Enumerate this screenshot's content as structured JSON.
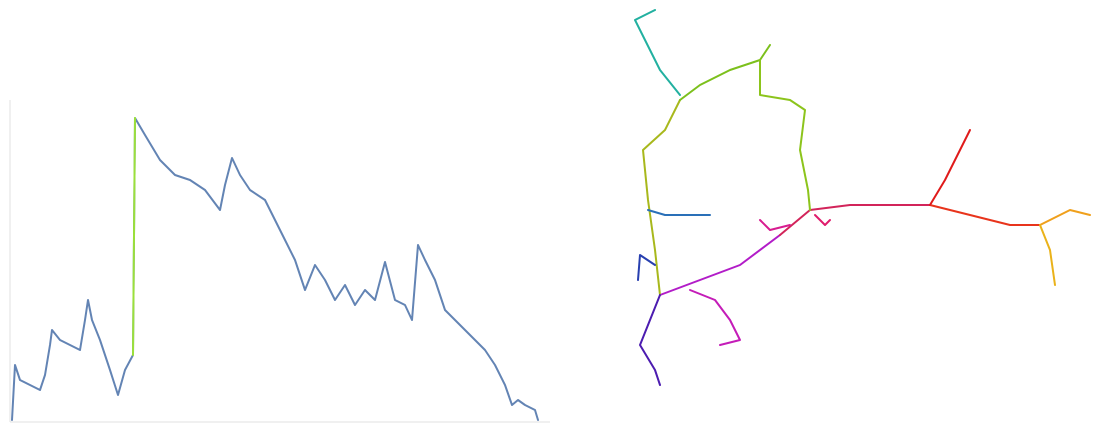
{
  "chart_data": [
    {
      "type": "line",
      "xlim": [
        0,
        540
      ],
      "ylim": [
        0,
        322
      ],
      "axes": true,
      "series": [
        {
          "color": "#6384b4",
          "x": [
            2,
            5,
            10,
            20,
            30,
            35,
            40,
            42,
            50,
            60,
            70,
            75,
            78,
            82,
            90,
            100,
            108,
            115,
            123,
            125,
            135,
            150,
            165,
            180,
            195,
            210,
            215,
            222,
            230,
            240,
            255,
            265,
            275,
            285,
            295,
            305,
            315,
            325,
            335,
            345,
            355,
            365,
            375,
            385,
            395,
            402,
            408,
            415,
            425,
            435,
            445,
            455,
            465,
            475,
            485,
            495,
            502,
            508,
            515,
            525,
            528
          ],
          "values": [
            2,
            57,
            42,
            37,
            32,
            47,
            77,
            92,
            82,
            77,
            72,
            102,
            122,
            102,
            82,
            52,
            27,
            52,
            67,
            304,
            287,
            262,
            247,
            242,
            232,
            212,
            237,
            264,
            247,
            232,
            222,
            202,
            182,
            162,
            132,
            157,
            142,
            122,
            137,
            117,
            132,
            122,
            160,
            122,
            117,
            102,
            177,
            162,
            142,
            112,
            102,
            92,
            82,
            72,
            57,
            37,
            17,
            22,
            17,
            12,
            2
          ]
        },
        {
          "color": "#9be03a",
          "x": [
            123,
            125
          ],
          "values": [
            67,
            304
          ]
        }
      ]
    },
    {
      "type": "line",
      "xlim": [
        0,
        475
      ],
      "ylim": [
        0,
        439
      ],
      "axes": false,
      "series": [
        {
          "color": "#b21cc8",
          "x": [
            40,
            80,
            120,
            160
          ],
          "values": [
            144,
            159,
            174,
            204
          ]
        },
        {
          "color": "#d2245a",
          "x": [
            160,
            190,
            230,
            270,
            310
          ],
          "values": [
            204,
            229,
            234,
            234,
            234
          ]
        },
        {
          "color": "#e8341c",
          "x": [
            310,
            350,
            390,
            420
          ],
          "values": [
            234,
            224,
            214,
            214
          ]
        },
        {
          "color": "#f0a01c",
          "x": [
            420,
            450,
            470
          ],
          "values": [
            214,
            229,
            224
          ]
        },
        {
          "color": "#a8b81c",
          "x": [
            40,
            35,
            28,
            23,
            45,
            60
          ],
          "values": [
            144,
            189,
            239,
            289,
            309,
            339
          ]
        },
        {
          "color": "#7cc01c",
          "x": [
            60,
            80,
            110,
            140,
            150
          ],
          "values": [
            339,
            354,
            369,
            379,
            394
          ]
        },
        {
          "color": "#8cc41c",
          "x": [
            140,
            140,
            170,
            185,
            180,
            188,
            190
          ],
          "values": [
            379,
            344,
            339,
            329,
            289,
            249,
            229
          ]
        },
        {
          "color": "#22b0a0",
          "x": [
            60,
            40,
            25,
            15,
            35
          ],
          "values": [
            344,
            369,
            399,
            419,
            429
          ]
        },
        {
          "color": "#e01a1a",
          "x": [
            310,
            325,
            340,
            350
          ],
          "values": [
            234,
            259,
            289,
            309
          ]
        },
        {
          "color": "#eab21a",
          "x": [
            420,
            430,
            435
          ],
          "values": [
            214,
            189,
            154
          ]
        },
        {
          "color": "#2a70b8",
          "x": [
            28,
            45,
            70,
            90
          ],
          "values": [
            229,
            224,
            224,
            224
          ]
        },
        {
          "color": "#2840b0",
          "x": [
            35,
            20,
            18
          ],
          "values": [
            174,
            184,
            159
          ]
        },
        {
          "color": "#4c1cb0",
          "x": [
            40,
            30,
            20,
            35,
            40
          ],
          "values": [
            144,
            119,
            94,
            69,
            54
          ]
        },
        {
          "color": "#c41cb8",
          "x": [
            70,
            95,
            110,
            120,
            100
          ],
          "values": [
            149,
            139,
            119,
            99,
            94
          ]
        },
        {
          "color": "#d81c90",
          "x": [
            140,
            150,
            170
          ],
          "values": [
            219,
            209,
            214
          ]
        },
        {
          "color": "#e01c6c",
          "x": [
            195,
            205,
            210
          ],
          "values": [
            224,
            214,
            219
          ]
        }
      ]
    }
  ]
}
